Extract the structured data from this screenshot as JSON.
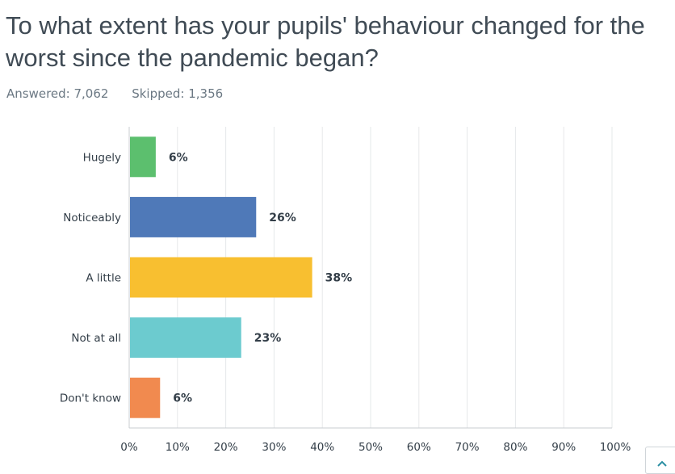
{
  "question": {
    "title": "To what extent has your pupils' behaviour changed for the worst since the pandemic began?",
    "answered": "Answered: 7,062",
    "skipped": "Skipped: 1,356"
  },
  "chart_data": {
    "type": "bar",
    "orientation": "horizontal",
    "categories": [
      "Hugely",
      "Noticeably",
      "A little",
      "Not at all",
      "Don't know"
    ],
    "values": [
      5.5,
      26.3,
      37.9,
      23.2,
      6.4
    ],
    "value_labels": [
      "6%",
      "26%",
      "38%",
      "23%",
      "6%"
    ],
    "colors": [
      "#5cbf6e",
      "#4f79b8",
      "#f8bf30",
      "#6ccbcf",
      "#f18a4f"
    ],
    "xlim": [
      0,
      100
    ],
    "x_ticks": [
      "0%",
      "10%",
      "20%",
      "30%",
      "40%",
      "50%",
      "60%",
      "70%",
      "80%",
      "90%",
      "100%"
    ],
    "grid": true
  },
  "icons": {
    "scroll_top": "chevron-up-icon"
  }
}
